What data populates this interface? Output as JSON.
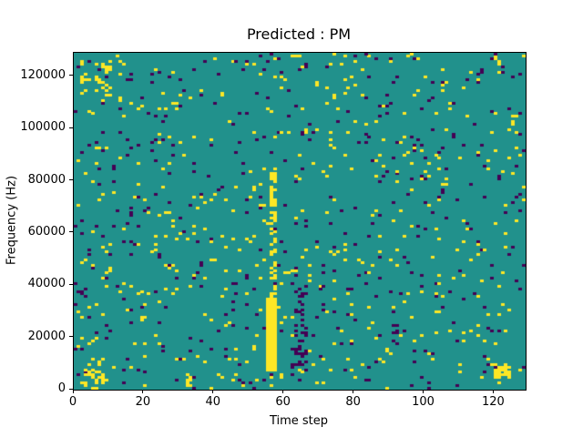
{
  "chart_data": {
    "type": "heatmap",
    "title": "Predicted : PM",
    "xlabel": "Time step",
    "ylabel": "Frequency (Hz)",
    "xlim": [
      0,
      129
    ],
    "ylim": [
      0,
      129000
    ],
    "xticks": [
      "0",
      "20",
      "40",
      "60",
      "80",
      "100",
      "120"
    ],
    "xtick_values": [
      0,
      20,
      40,
      60,
      80,
      100,
      120
    ],
    "yticks": [
      "0",
      "20000",
      "40000",
      "60000",
      "80000",
      "100000",
      "120000"
    ],
    "ytick_values": [
      0,
      20000,
      40000,
      60000,
      80000,
      100000,
      120000
    ],
    "grid": {
      "cols": 129,
      "rows": 129
    },
    "colormap": {
      "background": "#21918c",
      "low": "#440154",
      "high": "#fde725"
    },
    "noise": {
      "seed": 1337,
      "high_density": 0.028,
      "low_density": 0.024
    },
    "features": [
      {
        "col": 55,
        "col_span": 3,
        "row_start": 7,
        "row_end": 35,
        "color": "high",
        "p": 1.0
      },
      {
        "col": 56,
        "col_span": 2,
        "row_start": 35,
        "row_end": 85,
        "color": "high",
        "p": 0.5
      },
      {
        "col": 62,
        "col_span": 5,
        "row_start": 8,
        "row_end": 40,
        "color": "low",
        "p": 0.22
      },
      {
        "col": 120,
        "col_span": 5,
        "row_start": 4,
        "row_end": 10,
        "color": "high",
        "p": 0.75
      },
      {
        "col": 3,
        "col_span": 6,
        "row_start": 0,
        "row_end": 12,
        "color": "high",
        "p": 0.4
      },
      {
        "col": 32,
        "col_span": 2,
        "row_start": 0,
        "row_end": 7,
        "color": "high",
        "p": 0.7
      },
      {
        "col": 2,
        "col_span": 9,
        "row_start": 112,
        "row_end": 126,
        "color": "high",
        "p": 0.18
      }
    ],
    "legend": null,
    "grid_lines": false
  }
}
